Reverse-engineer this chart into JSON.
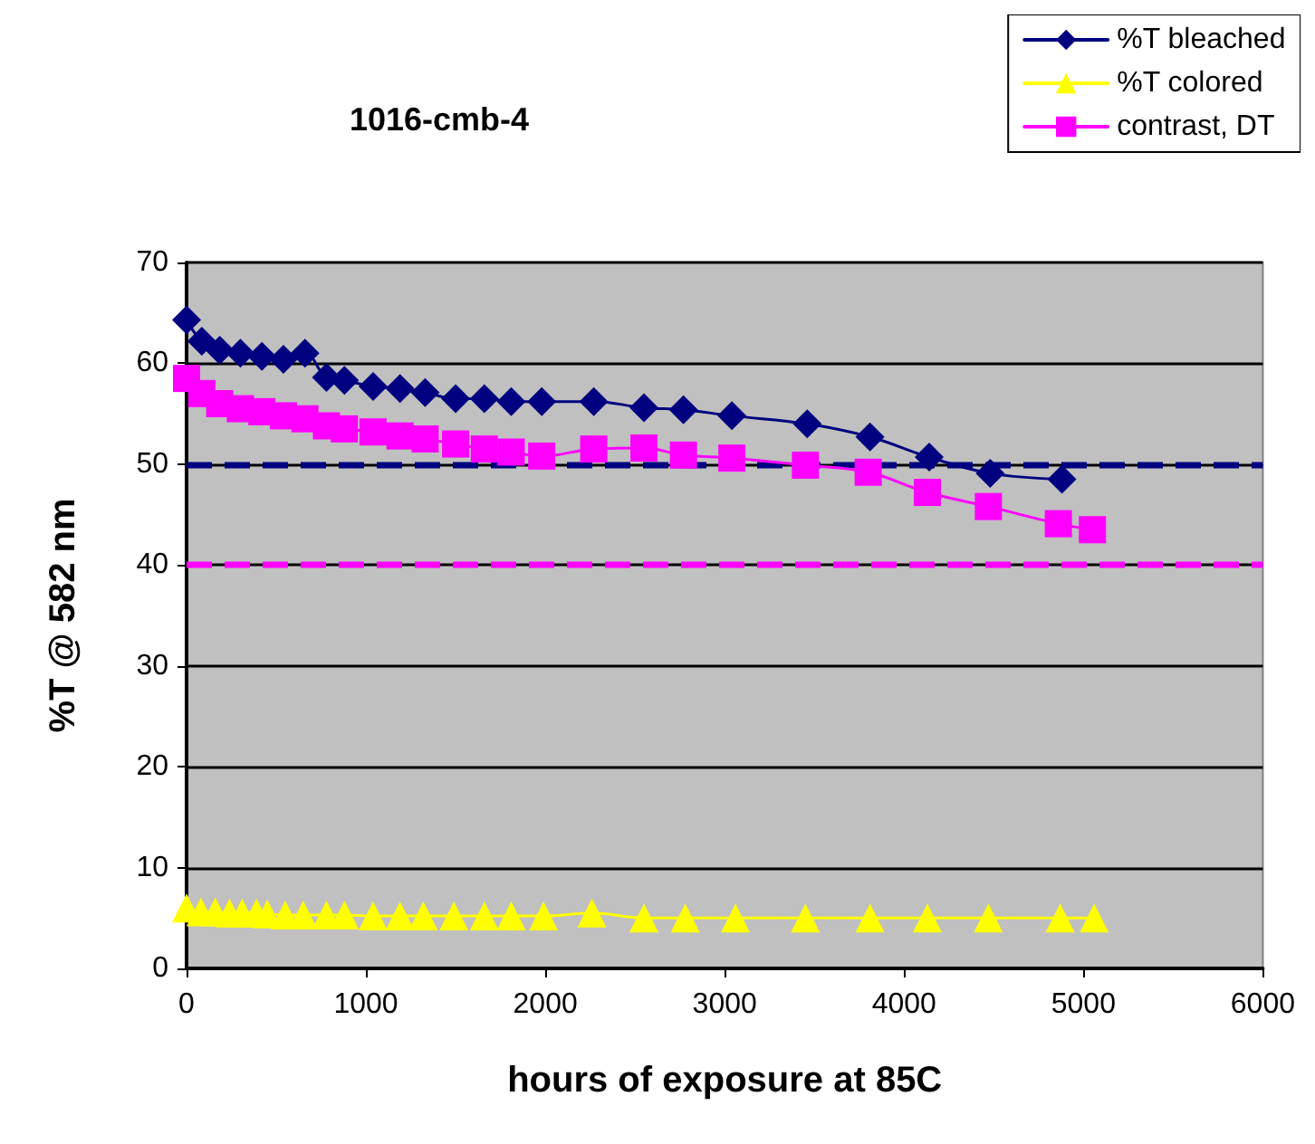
{
  "chart_data": {
    "type": "line",
    "title": "1016-cmb-4",
    "xlabel": "hours of exposure at 85C",
    "ylabel": "%T @ 582 nm",
    "xlim": [
      0,
      6000
    ],
    "xticks": [
      0,
      1000,
      2000,
      3000,
      4000,
      5000,
      6000
    ],
    "ylim": [
      0,
      70
    ],
    "yticks": [
      0,
      10,
      20,
      30,
      40,
      50,
      60,
      70
    ],
    "grid": "y",
    "legend": "top right",
    "line_style": "solid",
    "series": [
      {
        "name": "%T bleached",
        "color": "#000080",
        "marker": "diamond",
        "x": [
          0,
          85,
          185,
          300,
          420,
          540,
          660,
          780,
          880,
          1040,
          1190,
          1330,
          1500,
          1660,
          1810,
          1980,
          2270,
          2550,
          2770,
          3040,
          3460,
          3810,
          4140,
          4480,
          4880
        ],
        "values": [
          64.3,
          62.2,
          61.3,
          61.0,
          60.7,
          60.4,
          61.0,
          58.6,
          58.3,
          57.7,
          57.5,
          57.1,
          56.5,
          56.5,
          56.2,
          56.2,
          56.2,
          55.6,
          55.4,
          54.8,
          54.0,
          52.7,
          50.7,
          49.1,
          48.5
        ]
      },
      {
        "name": "%T colored",
        "color": "#ffff00",
        "marker": "triangle",
        "x": [
          0,
          80,
          160,
          240,
          310,
          390,
          450,
          550,
          650,
          780,
          880,
          1040,
          1190,
          1320,
          1490,
          1660,
          1810,
          1990,
          2260,
          2550,
          2780,
          3060,
          3450,
          3810,
          4130,
          4470,
          4870,
          5060
        ],
        "values": [
          6.0,
          5.6,
          5.6,
          5.5,
          5.5,
          5.5,
          5.4,
          5.3,
          5.3,
          5.3,
          5.3,
          5.2,
          5.2,
          5.2,
          5.2,
          5.2,
          5.2,
          5.2,
          5.5,
          5.0,
          5.0,
          5.0,
          5.0,
          5.0,
          5.0,
          5.0,
          5.0,
          5.0
        ]
      },
      {
        "name": "contrast, DT",
        "color": "#ff00ff",
        "marker": "square",
        "x": [
          0,
          85,
          185,
          300,
          420,
          540,
          660,
          780,
          880,
          1040,
          1190,
          1330,
          1500,
          1660,
          1810,
          1980,
          2270,
          2550,
          2770,
          3040,
          3450,
          3800,
          4130,
          4470,
          4860,
          5050
        ],
        "values": [
          58.5,
          57.0,
          56.0,
          55.5,
          55.2,
          54.8,
          54.5,
          53.8,
          53.5,
          53.2,
          52.8,
          52.5,
          52.0,
          51.5,
          51.2,
          50.8,
          51.5,
          51.6,
          50.9,
          50.6,
          49.9,
          49.2,
          47.2,
          45.8,
          44.1,
          43.5
        ]
      }
    ],
    "ref_lines": [
      {
        "axis": "y",
        "value": 50,
        "color": "#000080",
        "line_style": "dashed"
      },
      {
        "axis": "y",
        "value": 40,
        "color": "#ff00ff",
        "line_style": "dashed"
      }
    ]
  }
}
